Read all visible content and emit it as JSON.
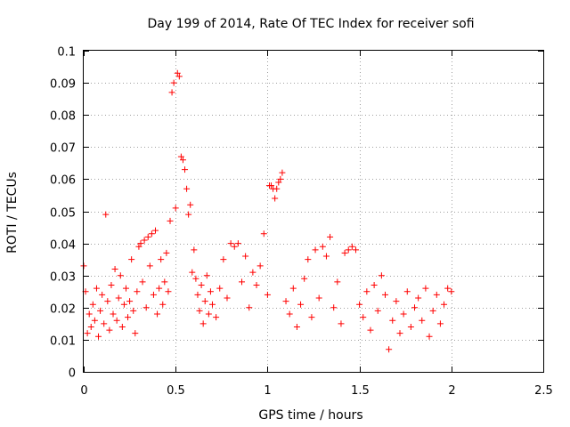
{
  "chart_data": {
    "type": "scatter",
    "title": "Day 199 of 2014, Rate Of TEC Index for receiver sofi",
    "xlabel": "GPS time / hours",
    "ylabel": "ROTI / TECUs",
    "xlim": [
      0,
      2.5
    ],
    "ylim": [
      0,
      0.1
    ],
    "x_ticks": [
      "0",
      "0.5",
      "1",
      "1.5",
      "2",
      "2.5"
    ],
    "y_ticks": [
      "0",
      "0.01",
      "0.02",
      "0.03",
      "0.04",
      "0.05",
      "0.06",
      "0.07",
      "0.08",
      "0.09",
      "0.1"
    ],
    "grid": true,
    "marker": "+",
    "marker_color": "#ff0000",
    "series": [
      {
        "points": [
          [
            0.0,
            0.033
          ],
          [
            0.01,
            0.025
          ],
          [
            0.02,
            0.012
          ],
          [
            0.03,
            0.018
          ],
          [
            0.04,
            0.014
          ],
          [
            0.05,
            0.021
          ],
          [
            0.06,
            0.016
          ],
          [
            0.07,
            0.026
          ],
          [
            0.08,
            0.011
          ],
          [
            0.09,
            0.019
          ],
          [
            0.1,
            0.024
          ],
          [
            0.11,
            0.015
          ],
          [
            0.12,
            0.049
          ],
          [
            0.13,
            0.022
          ],
          [
            0.14,
            0.013
          ],
          [
            0.15,
            0.027
          ],
          [
            0.16,
            0.018
          ],
          [
            0.17,
            0.032
          ],
          [
            0.18,
            0.016
          ],
          [
            0.19,
            0.023
          ],
          [
            0.2,
            0.03
          ],
          [
            0.21,
            0.014
          ],
          [
            0.22,
            0.021
          ],
          [
            0.23,
            0.026
          ],
          [
            0.24,
            0.017
          ],
          [
            0.25,
            0.022
          ],
          [
            0.26,
            0.035
          ],
          [
            0.27,
            0.019
          ],
          [
            0.28,
            0.012
          ],
          [
            0.29,
            0.025
          ],
          [
            0.3,
            0.039
          ],
          [
            0.31,
            0.04
          ],
          [
            0.32,
            0.028
          ],
          [
            0.33,
            0.041
          ],
          [
            0.34,
            0.02
          ],
          [
            0.35,
            0.042
          ],
          [
            0.36,
            0.033
          ],
          [
            0.37,
            0.043
          ],
          [
            0.38,
            0.024
          ],
          [
            0.39,
            0.044
          ],
          [
            0.4,
            0.018
          ],
          [
            0.41,
            0.026
          ],
          [
            0.42,
            0.035
          ],
          [
            0.43,
            0.021
          ],
          [
            0.44,
            0.028
          ],
          [
            0.45,
            0.037
          ],
          [
            0.46,
            0.025
          ],
          [
            0.47,
            0.047
          ],
          [
            0.48,
            0.087
          ],
          [
            0.49,
            0.09
          ],
          [
            0.5,
            0.051
          ],
          [
            0.51,
            0.093
          ],
          [
            0.52,
            0.092
          ],
          [
            0.53,
            0.067
          ],
          [
            0.54,
            0.066
          ],
          [
            0.55,
            0.063
          ],
          [
            0.56,
            0.057
          ],
          [
            0.57,
            0.049
          ],
          [
            0.58,
            0.052
          ],
          [
            0.59,
            0.031
          ],
          [
            0.6,
            0.038
          ],
          [
            0.61,
            0.029
          ],
          [
            0.62,
            0.024
          ],
          [
            0.63,
            0.019
          ],
          [
            0.64,
            0.027
          ],
          [
            0.65,
            0.015
          ],
          [
            0.66,
            0.022
          ],
          [
            0.67,
            0.03
          ],
          [
            0.68,
            0.018
          ],
          [
            0.69,
            0.025
          ],
          [
            0.7,
            0.021
          ],
          [
            0.72,
            0.017
          ],
          [
            0.74,
            0.026
          ],
          [
            0.76,
            0.035
          ],
          [
            0.78,
            0.023
          ],
          [
            0.8,
            0.04
          ],
          [
            0.82,
            0.039
          ],
          [
            0.84,
            0.04
          ],
          [
            0.86,
            0.028
          ],
          [
            0.88,
            0.036
          ],
          [
            0.9,
            0.02
          ],
          [
            0.92,
            0.031
          ],
          [
            0.94,
            0.027
          ],
          [
            0.96,
            0.033
          ],
          [
            0.98,
            0.043
          ],
          [
            1.0,
            0.024
          ],
          [
            1.01,
            0.058
          ],
          [
            1.02,
            0.058
          ],
          [
            1.03,
            0.057
          ],
          [
            1.04,
            0.054
          ],
          [
            1.05,
            0.057
          ],
          [
            1.06,
            0.059
          ],
          [
            1.07,
            0.06
          ],
          [
            1.08,
            0.062
          ],
          [
            1.1,
            0.022
          ],
          [
            1.12,
            0.018
          ],
          [
            1.14,
            0.026
          ],
          [
            1.16,
            0.014
          ],
          [
            1.18,
            0.021
          ],
          [
            1.2,
            0.029
          ],
          [
            1.22,
            0.035
          ],
          [
            1.24,
            0.017
          ],
          [
            1.26,
            0.038
          ],
          [
            1.28,
            0.023
          ],
          [
            1.3,
            0.039
          ],
          [
            1.32,
            0.036
          ],
          [
            1.34,
            0.042
          ],
          [
            1.36,
            0.02
          ],
          [
            1.38,
            0.028
          ],
          [
            1.4,
            0.015
          ],
          [
            1.42,
            0.037
          ],
          [
            1.44,
            0.038
          ],
          [
            1.46,
            0.039
          ],
          [
            1.48,
            0.038
          ],
          [
            1.5,
            0.021
          ],
          [
            1.52,
            0.017
          ],
          [
            1.54,
            0.025
          ],
          [
            1.56,
            0.013
          ],
          [
            1.58,
            0.027
          ],
          [
            1.6,
            0.019
          ],
          [
            1.62,
            0.03
          ],
          [
            1.64,
            0.024
          ],
          [
            1.66,
            0.007
          ],
          [
            1.68,
            0.016
          ],
          [
            1.7,
            0.022
          ],
          [
            1.72,
            0.012
          ],
          [
            1.74,
            0.018
          ],
          [
            1.76,
            0.025
          ],
          [
            1.78,
            0.014
          ],
          [
            1.8,
            0.02
          ],
          [
            1.82,
            0.023
          ],
          [
            1.84,
            0.016
          ],
          [
            1.86,
            0.026
          ],
          [
            1.88,
            0.011
          ],
          [
            1.9,
            0.019
          ],
          [
            1.92,
            0.024
          ],
          [
            1.94,
            0.015
          ],
          [
            1.96,
            0.021
          ],
          [
            1.98,
            0.026
          ],
          [
            2.0,
            0.025
          ]
        ]
      }
    ]
  }
}
